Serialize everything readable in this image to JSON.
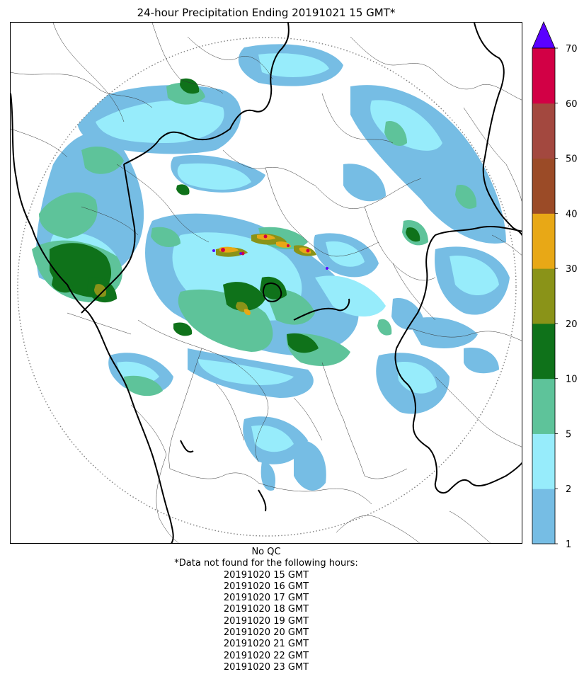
{
  "title": "24-hour Precipitation Ending 20191021 15 GMT*",
  "legend": {
    "bins": [
      {
        "from": 1,
        "to": 2,
        "color": "#76bde4"
      },
      {
        "from": 2,
        "to": 5,
        "color": "#97ecfb"
      },
      {
        "from": 5,
        "to": 10,
        "color": "#5ec39a"
      },
      {
        "from": 10,
        "to": 20,
        "color": "#0f721a"
      },
      {
        "from": 20,
        "to": 30,
        "color": "#8a9318"
      },
      {
        "from": 30,
        "to": 40,
        "color": "#e8a816"
      },
      {
        "from": 40,
        "to": 50,
        "color": "#9b4b27"
      },
      {
        "from": 50,
        "to": 60,
        "color": "#a3483f"
      },
      {
        "from": 60,
        "to": 70,
        "color": "#d20045"
      }
    ],
    "extend_color": "#5a00ff",
    "tick_labels": [
      "1",
      "2",
      "5",
      "10",
      "20",
      "30",
      "40",
      "50",
      "60",
      "70"
    ]
  },
  "footnote": {
    "qc": "No QC",
    "missing_header": "*Data not found for the following hours:",
    "missing_hours": [
      "20191020 15 GMT",
      "20191020 16 GMT",
      "20191020 17 GMT",
      "20191020 18 GMT",
      "20191020 19 GMT",
      "20191020 20 GMT",
      "20191020 21 GMT",
      "20191020 22 GMT",
      "20191020 23 GMT"
    ]
  }
}
